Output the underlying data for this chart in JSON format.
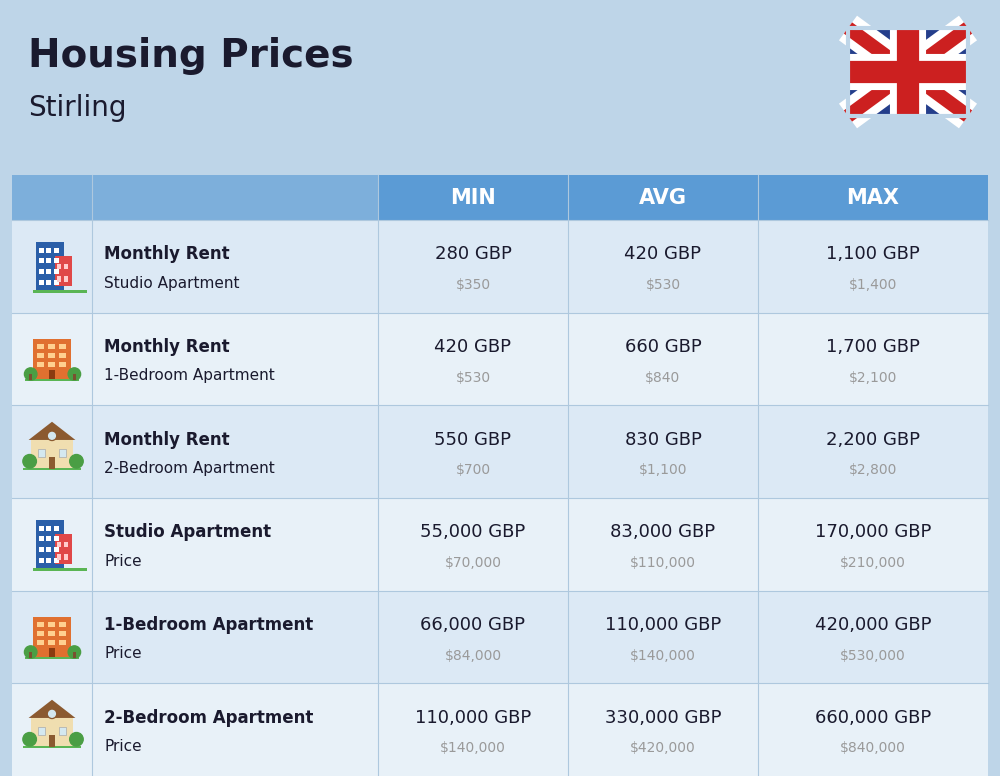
{
  "title": "Housing Prices",
  "subtitle": "Stirling",
  "background_color": "#bed5e8",
  "header_color": "#5b9bd5",
  "header_text_color": "#ffffff",
  "row_alt_color": "#dce9f5",
  "row_base_color": "#e8f1f8",
  "rows": [
    {
      "bold_label": "Monthly Rent",
      "sub_label": "Studio Apartment",
      "min_gbp": "280 GBP",
      "min_usd": "$350",
      "avg_gbp": "420 GBP",
      "avg_usd": "$530",
      "max_gbp": "1,100 GBP",
      "max_usd": "$1,400",
      "icon_type": "studio_blue"
    },
    {
      "bold_label": "Monthly Rent",
      "sub_label": "1-Bedroom Apartment",
      "min_gbp": "420 GBP",
      "min_usd": "$530",
      "avg_gbp": "660 GBP",
      "avg_usd": "$840",
      "max_gbp": "1,700 GBP",
      "max_usd": "$2,100",
      "icon_type": "one_bed_orange"
    },
    {
      "bold_label": "Monthly Rent",
      "sub_label": "2-Bedroom Apartment",
      "min_gbp": "550 GBP",
      "min_usd": "$700",
      "avg_gbp": "830 GBP",
      "avg_usd": "$1,100",
      "max_gbp": "2,200 GBP",
      "max_usd": "$2,800",
      "icon_type": "two_bed_house"
    },
    {
      "bold_label": "Studio Apartment",
      "sub_label": "Price",
      "min_gbp": "55,000 GBP",
      "min_usd": "$70,000",
      "avg_gbp": "83,000 GBP",
      "avg_usd": "$110,000",
      "max_gbp": "170,000 GBP",
      "max_usd": "$210,000",
      "icon_type": "studio_blue"
    },
    {
      "bold_label": "1-Bedroom Apartment",
      "sub_label": "Price",
      "min_gbp": "66,000 GBP",
      "min_usd": "$84,000",
      "avg_gbp": "110,000 GBP",
      "avg_usd": "$140,000",
      "max_gbp": "420,000 GBP",
      "max_usd": "$530,000",
      "icon_type": "one_bed_orange"
    },
    {
      "bold_label": "2-Bedroom Apartment",
      "sub_label": "Price",
      "min_gbp": "110,000 GBP",
      "min_usd": "$140,000",
      "avg_gbp": "330,000 GBP",
      "avg_usd": "$420,000",
      "max_gbp": "660,000 GBP",
      "max_usd": "$840,000",
      "icon_type": "two_bed_house"
    }
  ],
  "text_color_dark": "#1a1a2e",
  "text_color_gray": "#9a9a9a",
  "divider_color": "#aec8de"
}
